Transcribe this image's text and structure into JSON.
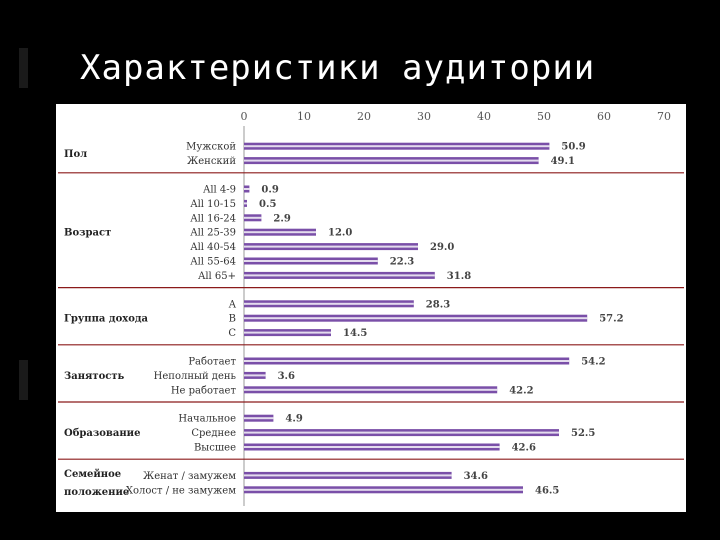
{
  "slide": {
    "title": "Характеристики аудитории"
  },
  "chart_data": {
    "type": "bar",
    "orientation": "horizontal",
    "xlim": [
      0,
      70
    ],
    "xticks": [
      "0",
      "10",
      "20",
      "30",
      "40",
      "50",
      "60",
      "70"
    ],
    "grid": false,
    "bar_color": "#7a4fa8",
    "separator_color": "#8b1a1a",
    "groups": [
      {
        "name": "Пол",
        "items": [
          {
            "label": "Мужской",
            "value": 50.9,
            "value_label": "50.9"
          },
          {
            "label": "Женский",
            "value": 49.1,
            "value_label": "49.1"
          }
        ]
      },
      {
        "name": "Возраст",
        "items": [
          {
            "label": "All 4-9",
            "value": 0.9,
            "value_label": "0.9"
          },
          {
            "label": "All 10-15",
            "value": 0.5,
            "value_label": "0.5"
          },
          {
            "label": "All 16-24",
            "value": 2.9,
            "value_label": "2.9"
          },
          {
            "label": "All 25-39",
            "value": 12.0,
            "value_label": "12.0"
          },
          {
            "label": "All 40-54",
            "value": 29.0,
            "value_label": "29.0"
          },
          {
            "label": "All 55-64",
            "value": 22.3,
            "value_label": "22.3"
          },
          {
            "label": "All 65+",
            "value": 31.8,
            "value_label": "31.8"
          }
        ]
      },
      {
        "name": "Группа дохода",
        "items": [
          {
            "label": "A",
            "value": 28.3,
            "value_label": "28.3"
          },
          {
            "label": "B",
            "value": 57.2,
            "value_label": "57.2"
          },
          {
            "label": "C",
            "value": 14.5,
            "value_label": "14.5"
          }
        ]
      },
      {
        "name": "Занятость",
        "items": [
          {
            "label": "Работает",
            "value": 54.2,
            "value_label": "54.2"
          },
          {
            "label": "Неполный день",
            "value": 3.6,
            "value_label": "3.6"
          },
          {
            "label": "Не работает",
            "value": 42.2,
            "value_label": "42.2"
          }
        ]
      },
      {
        "name": "Образование",
        "items": [
          {
            "label": "Начальное",
            "value": 4.9,
            "value_label": "4.9"
          },
          {
            "label": "Среднее",
            "value": 52.5,
            "value_label": "52.5"
          },
          {
            "label": "Высшее",
            "value": 42.6,
            "value_label": "42.6"
          }
        ]
      },
      {
        "name": "Семейное положение",
        "name_lines": [
          "Семейное",
          "положение"
        ],
        "items": [
          {
            "label": "Женат / замужем",
            "value": 34.6,
            "value_label": "34.6"
          },
          {
            "label": "Холост / не замужем",
            "value": 46.5,
            "value_label": "46.5"
          }
        ]
      }
    ]
  }
}
